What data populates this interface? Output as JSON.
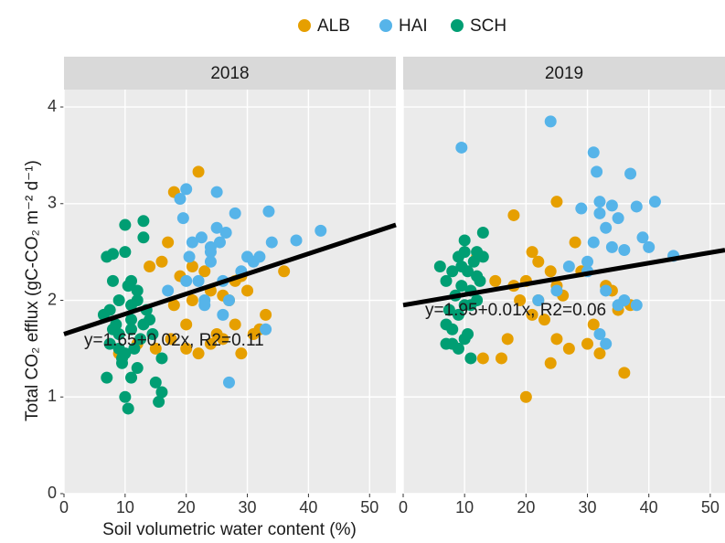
{
  "chart_data": [
    {
      "type": "scatter",
      "title": "2018",
      "xlabel": "Soil volumetric water content (%)",
      "ylabel": "Total CO₂ efflux (gC-CO₂ m⁻² d⁻¹)",
      "xlim": [
        0,
        54.3
      ],
      "ylim": [
        0,
        4.18
      ],
      "xticks": [
        0,
        10,
        20,
        30,
        40,
        50
      ],
      "yticks": [
        0,
        1,
        2,
        3,
        4
      ],
      "grid": true,
      "annotation": "y=1.65+0.02x, R2=0.11",
      "trend": {
        "x": [
          0,
          54.3
        ],
        "y": [
          1.65,
          2.78
        ],
        "color": "#000000"
      },
      "series": [
        {
          "name": "ALB",
          "color": "#E69F00",
          "x": [
            9,
            12,
            14,
            15,
            16,
            17,
            17.5,
            18,
            19,
            20,
            20,
            21,
            22,
            22,
            23,
            24,
            25,
            26,
            27,
            28,
            28,
            29,
            30,
            31,
            32,
            33,
            36,
            18,
            21,
            24,
            26,
            29
          ],
          "values": [
            1.45,
            1.55,
            2.35,
            1.5,
            2.4,
            2.6,
            1.6,
            3.12,
            2.25,
            1.75,
            1.5,
            2.0,
            3.33,
            1.45,
            2.3,
            2.1,
            1.65,
            1.6,
            2.0,
            2.2,
            1.75,
            1.45,
            2.1,
            1.65,
            1.7,
            1.85,
            2.3,
            1.95,
            2.35,
            1.55,
            2.05,
            2.25
          ]
        },
        {
          "name": "HAI",
          "color": "#56B4E9",
          "x": [
            17,
            19,
            19.5,
            20,
            20.5,
            21,
            22,
            22.5,
            23,
            24,
            24,
            25,
            25,
            25.5,
            26,
            26.5,
            27,
            27,
            28,
            29,
            30,
            31,
            32,
            33,
            33.5,
            34,
            38,
            42,
            23,
            26,
            20,
            24
          ],
          "values": [
            2.1,
            3.05,
            2.85,
            3.15,
            2.45,
            2.6,
            2.2,
            2.65,
            2.0,
            2.55,
            2.4,
            3.12,
            2.75,
            2.6,
            2.2,
            2.7,
            2.0,
            1.15,
            2.9,
            2.3,
            2.45,
            2.4,
            2.45,
            1.7,
            2.92,
            2.6,
            2.62,
            2.72,
            1.95,
            1.85,
            2.2,
            2.5
          ]
        },
        {
          "name": "SCH",
          "color": "#009E73",
          "x": [
            7,
            7.5,
            8,
            8.5,
            9,
            9.5,
            10,
            10,
            10.5,
            11,
            11,
            11.5,
            12,
            12,
            13,
            13,
            13.5,
            14,
            14.5,
            15,
            15.5,
            16,
            7,
            8,
            9,
            10,
            11,
            12,
            6.5,
            8,
            9.5,
            10.5,
            11,
            12.5,
            13,
            7.5,
            10,
            11,
            16,
            9
          ],
          "values": [
            2.45,
            1.9,
            2.2,
            1.75,
            1.5,
            1.4,
            2.78,
            1.0,
            0.88,
            2.2,
            1.7,
            1.5,
            2.1,
            1.3,
            2.82,
            2.65,
            1.9,
            1.8,
            1.65,
            1.15,
            0.95,
            1.4,
            1.2,
            2.48,
            2.0,
            2.5,
            1.8,
            2.0,
            1.85,
            1.7,
            1.35,
            2.15,
            1.95,
            1.6,
            1.75,
            1.55,
            1.45,
            1.2,
            1.05,
            1.65
          ]
        }
      ]
    },
    {
      "type": "scatter",
      "title": "2019",
      "xlim": [
        0,
        52.4
      ],
      "ylim": [
        0,
        4.18
      ],
      "xticks": [
        0,
        10,
        20,
        30,
        40,
        50
      ],
      "yticks": [
        0,
        1,
        2,
        3,
        4
      ],
      "grid": true,
      "annotation": "y=1.95+0.01x, R2=0.06",
      "trend": {
        "x": [
          0,
          52.4
        ],
        "y": [
          1.95,
          2.52
        ],
        "color": "#000000"
      },
      "series": [
        {
          "name": "ALB",
          "color": "#E69F00",
          "x": [
            12,
            13,
            15,
            16,
            17,
            18,
            18,
            19,
            20,
            20,
            21,
            21,
            22,
            22,
            23,
            24,
            24,
            25,
            25,
            25,
            26,
            27,
            28,
            29,
            30,
            31,
            32,
            33,
            34,
            35,
            36,
            37
          ],
          "values": [
            2.45,
            1.4,
            2.2,
            1.4,
            1.6,
            2.88,
            2.15,
            2.0,
            1.0,
            2.2,
            2.5,
            1.85,
            2.4,
            2.0,
            1.8,
            1.35,
            2.3,
            3.02,
            1.6,
            2.15,
            2.05,
            1.5,
            2.6,
            2.3,
            1.55,
            1.75,
            1.45,
            2.15,
            2.1,
            1.9,
            1.25,
            1.95
          ]
        },
        {
          "name": "HAI",
          "color": "#56B4E9",
          "x": [
            9.5,
            24,
            31,
            31.5,
            32,
            32,
            33,
            34,
            34,
            35,
            36,
            37,
            38,
            39,
            40,
            41,
            44,
            30,
            31,
            33,
            35,
            22,
            25,
            27,
            29,
            33,
            36,
            38,
            30,
            32
          ],
          "values": [
            3.58,
            3.85,
            3.53,
            3.33,
            3.02,
            2.9,
            2.75,
            2.55,
            2.98,
            2.85,
            2.52,
            3.31,
            2.97,
            2.65,
            2.55,
            3.02,
            2.46,
            2.4,
            2.6,
            2.1,
            1.95,
            2.0,
            2.1,
            2.35,
            2.95,
            1.55,
            2.0,
            1.95,
            2.3,
            1.65
          ]
        },
        {
          "name": "SCH",
          "color": "#009E73",
          "x": [
            6,
            7,
            7,
            7.5,
            8,
            8,
            8.5,
            9,
            9,
            9.5,
            10,
            10,
            10,
            10.5,
            11,
            11,
            11.5,
            12,
            12,
            12.5,
            13,
            13,
            7,
            8,
            9,
            10,
            11,
            12,
            9.5,
            10.5
          ],
          "values": [
            2.35,
            1.55,
            2.2,
            1.9,
            2.3,
            1.7,
            2.05,
            1.5,
            2.45,
            2.15,
            2.62,
            1.95,
            1.6,
            2.3,
            1.4,
            2.1,
            2.4,
            2.0,
            2.5,
            2.2,
            2.7,
            2.45,
            1.75,
            1.55,
            1.85,
            2.5,
            1.95,
            2.25,
            2.35,
            1.65
          ]
        }
      ]
    }
  ]
}
